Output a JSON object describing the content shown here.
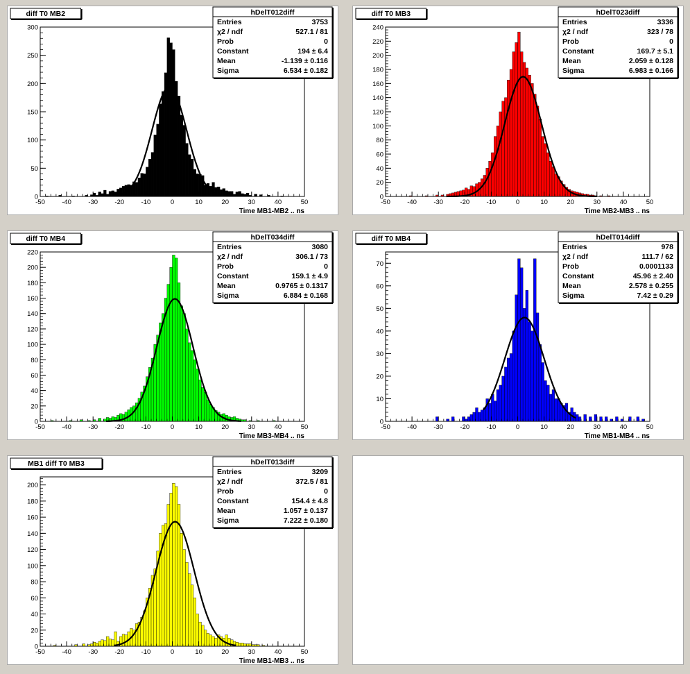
{
  "page": {
    "background": "#d4d0c8",
    "pad_background": "#ffffff"
  },
  "chart_data": [
    {
      "type": "histogram",
      "title": "diff T0 MB2",
      "xlabel": "Time MB1-MB2  ..  ns",
      "ylabel": "",
      "xlim": [
        -50,
        50
      ],
      "ylim": [
        0,
        300
      ],
      "xticks": [
        -50,
        -40,
        -30,
        -20,
        -10,
        0,
        10,
        20,
        30,
        40,
        50
      ],
      "yticks": [
        0,
        50,
        100,
        150,
        200,
        250,
        300
      ],
      "fill_color": "#000000",
      "fit_color": "#000000",
      "bin_width": 1,
      "x": [
        -47.5,
        -42.5,
        -37.5,
        -32.5,
        -30.5,
        -29.5,
        -28.5,
        -27.5,
        -26.5,
        -25.5,
        -24.5,
        -23.5,
        -22.5,
        -21.5,
        -20.5,
        -19.5,
        -18.5,
        -17.5,
        -16.5,
        -15.5,
        -14.5,
        -13.5,
        -12.5,
        -11.5,
        -10.5,
        -9.5,
        -8.5,
        -7.5,
        -6.5,
        -5.5,
        -4.5,
        -3.5,
        -2.5,
        -1.5,
        -0.5,
        0.5,
        1.5,
        2.5,
        3.5,
        4.5,
        5.5,
        6.5,
        7.5,
        8.5,
        9.5,
        10.5,
        11.5,
        12.5,
        13.5,
        14.5,
        15.5,
        16.5,
        17.5,
        18.5,
        19.5,
        20.5,
        21.5,
        22.5,
        23.5,
        24.5,
        25.5,
        26.5,
        27.5,
        28.5,
        29.5,
        31.5,
        33.5,
        36.5,
        41.5
      ],
      "values": [
        1,
        2,
        1,
        2,
        3,
        6,
        2,
        8,
        5,
        11,
        4,
        9,
        10,
        8,
        13,
        15,
        18,
        20,
        21,
        20,
        26,
        25,
        33,
        41,
        40,
        52,
        66,
        78,
        109,
        128,
        164,
        186,
        219,
        281,
        272,
        260,
        204,
        178,
        144,
        126,
        94,
        74,
        66,
        48,
        40,
        39,
        37,
        20,
        23,
        18,
        25,
        16,
        17,
        12,
        14,
        10,
        9,
        9,
        4,
        8,
        9,
        5,
        4,
        6,
        2,
        4,
        3,
        2,
        1
      ],
      "fit": {
        "constant": 194,
        "mean": -1.139,
        "sigma": 6.534,
        "x_range": [
          -20,
          16
        ]
      },
      "stats": {
        "name": "hDelT012diff",
        "rows": [
          {
            "label": "Entries",
            "value": "3753"
          },
          {
            "label": "χ2 / ndf",
            "value": "527.1 / 81"
          },
          {
            "label": "Prob",
            "value": "0"
          },
          {
            "label": "Constant",
            "value": "194 ± 6.4"
          },
          {
            "label": "Mean",
            "value": "-1.139 ± 0.116"
          },
          {
            "label": "Sigma",
            "value": "6.534 ± 0.182"
          }
        ]
      }
    },
    {
      "type": "histogram",
      "title": "diff T0 MB3",
      "xlabel": "Time MB2-MB3  ..  ns",
      "ylabel": "",
      "xlim": [
        -50,
        50
      ],
      "ylim": [
        0,
        240
      ],
      "xticks": [
        -50,
        -40,
        -30,
        -20,
        -10,
        0,
        10,
        20,
        30,
        40,
        50
      ],
      "yticks": [
        0,
        20,
        40,
        60,
        80,
        100,
        120,
        140,
        160,
        180,
        200,
        220,
        240
      ],
      "fill_color": "#ff0000",
      "fit_color": "#000000",
      "bin_width": 1,
      "x": [
        -40.5,
        -34.5,
        -30.5,
        -28.5,
        -26.5,
        -25.5,
        -24.5,
        -23.5,
        -22.5,
        -21.5,
        -20.5,
        -19.5,
        -18.5,
        -17.5,
        -16.5,
        -15.5,
        -14.5,
        -13.5,
        -12.5,
        -11.5,
        -10.5,
        -9.5,
        -8.5,
        -7.5,
        -6.5,
        -5.5,
        -4.5,
        -3.5,
        -2.5,
        -1.5,
        -0.5,
        0.5,
        1.5,
        2.5,
        3.5,
        4.5,
        5.5,
        6.5,
        7.5,
        8.5,
        9.5,
        10.5,
        11.5,
        12.5,
        13.5,
        14.5,
        15.5,
        16.5,
        17.5,
        18.5,
        19.5,
        20.5,
        21.5,
        22.5,
        23.5,
        24.5,
        25.5,
        26.5,
        27.5,
        28.5,
        29.5,
        31.5,
        34.5
      ],
      "values": [
        1,
        1,
        2,
        2,
        3,
        4,
        5,
        6,
        7,
        8,
        9,
        12,
        10,
        15,
        14,
        18,
        20,
        25,
        30,
        40,
        50,
        62,
        85,
        100,
        120,
        135,
        140,
        165,
        180,
        205,
        218,
        233,
        205,
        190,
        182,
        172,
        160,
        145,
        128,
        110,
        85,
        75,
        62,
        50,
        42,
        32,
        28,
        22,
        17,
        13,
        10,
        8,
        7,
        6,
        5,
        4,
        3,
        3,
        2,
        2,
        1,
        1,
        1
      ],
      "fit": {
        "constant": 169.7,
        "mean": 2.059,
        "sigma": 6.983,
        "x_range": [
          -27,
          30
        ]
      },
      "stats": {
        "name": "hDelT023diff",
        "rows": [
          {
            "label": "Entries",
            "value": "3336"
          },
          {
            "label": "χ2 / ndf",
            "value": "323 / 78"
          },
          {
            "label": "Prob",
            "value": "0"
          },
          {
            "label": "Constant",
            "value": "169.7 ± 5.1"
          },
          {
            "label": "Mean",
            "value": "2.059 ± 0.128"
          },
          {
            "label": "Sigma",
            "value": "6.983 ± 0.166"
          }
        ]
      }
    },
    {
      "type": "histogram",
      "title": "diff T0 MB4",
      "xlabel": "Time MB3-MB4  ..  ns",
      "ylabel": "",
      "xlim": [
        -50,
        50
      ],
      "ylim": [
        0,
        220
      ],
      "xticks": [
        -50,
        -40,
        -30,
        -20,
        -10,
        0,
        10,
        20,
        30,
        40,
        50
      ],
      "yticks": [
        0,
        20,
        40,
        60,
        80,
        100,
        120,
        140,
        160,
        180,
        200,
        220
      ],
      "fill_color": "#00ff00",
      "fit_color": "#000000",
      "bin_width": 1,
      "x": [
        -45.5,
        -38.5,
        -34.5,
        -31.5,
        -29.5,
        -27.5,
        -25.5,
        -24.5,
        -23.5,
        -22.5,
        -21.5,
        -20.5,
        -19.5,
        -18.5,
        -17.5,
        -16.5,
        -15.5,
        -14.5,
        -13.5,
        -12.5,
        -11.5,
        -10.5,
        -9.5,
        -8.5,
        -7.5,
        -6.5,
        -5.5,
        -4.5,
        -3.5,
        -2.5,
        -1.5,
        -0.5,
        0.5,
        1.5,
        2.5,
        3.5,
        4.5,
        5.5,
        6.5,
        7.5,
        8.5,
        9.5,
        10.5,
        11.5,
        12.5,
        13.5,
        14.5,
        15.5,
        16.5,
        17.5,
        18.5,
        19.5,
        20.5,
        21.5,
        22.5,
        23.5,
        24.5,
        25.5,
        26.5,
        27.5,
        29.5,
        32.5,
        38.5
      ],
      "values": [
        1,
        1,
        2,
        1,
        2,
        4,
        3,
        5,
        4,
        6,
        5,
        8,
        10,
        9,
        12,
        15,
        18,
        20,
        24,
        30,
        38,
        46,
        58,
        70,
        82,
        100,
        112,
        128,
        140,
        160,
        178,
        200,
        216,
        212,
        180,
        150,
        140,
        120,
        102,
        92,
        80,
        68,
        54,
        44,
        38,
        28,
        22,
        18,
        14,
        12,
        9,
        10,
        8,
        6,
        5,
        6,
        4,
        3,
        2,
        2,
        1,
        1,
        1
      ],
      "fit": {
        "constant": 159.1,
        "mean": 0.9765,
        "sigma": 6.884,
        "x_range": [
          -25,
          26
        ]
      },
      "stats": {
        "name": "hDelT034diff",
        "rows": [
          {
            "label": "Entries",
            "value": "3080"
          },
          {
            "label": "χ2 / ndf",
            "value": "306.1 / 73"
          },
          {
            "label": "Prob",
            "value": "0"
          },
          {
            "label": "Constant",
            "value": "159.1 ± 4.9"
          },
          {
            "label": "Mean",
            "value": "0.9765 ± 0.1317"
          },
          {
            "label": "Sigma",
            "value": "6.884 ± 0.168"
          }
        ]
      }
    },
    {
      "type": "histogram",
      "title": "diff T0 MB4",
      "xlabel": "Time MB1-MB4  ..  ns",
      "ylabel": "",
      "xlim": [
        -50,
        50
      ],
      "ylim": [
        0,
        75
      ],
      "xticks": [
        -50,
        -40,
        -30,
        -20,
        -10,
        0,
        10,
        20,
        30,
        40,
        50
      ],
      "yticks": [
        0,
        10,
        20,
        30,
        40,
        50,
        60,
        70
      ],
      "fill_color": "#0000ff",
      "fit_color": "#000000",
      "bin_width": 1,
      "x": [
        -30.5,
        -26.5,
        -24.5,
        -20.5,
        -19.5,
        -18.5,
        -17.5,
        -16.5,
        -15.5,
        -14.5,
        -13.5,
        -12.5,
        -11.5,
        -10.5,
        -9.5,
        -8.5,
        -7.5,
        -6.5,
        -5.5,
        -4.5,
        -3.5,
        -2.5,
        -1.5,
        -0.5,
        0.5,
        1.5,
        2.5,
        3.5,
        4.5,
        5.5,
        6.5,
        7.5,
        8.5,
        9.5,
        10.5,
        11.5,
        12.5,
        13.5,
        14.5,
        15.5,
        16.5,
        17.5,
        18.5,
        19.5,
        20.5,
        21.5,
        22.5,
        23.5,
        25.5,
        27.5,
        29.5,
        31.5,
        33.5,
        35.5,
        37.5,
        39.5,
        42.5,
        45.5,
        47.5
      ],
      "values": [
        2,
        1,
        2,
        2,
        1,
        2,
        3,
        4,
        6,
        4,
        5,
        6,
        10,
        8,
        12,
        9,
        14,
        16,
        20,
        24,
        28,
        30,
        40,
        56,
        72,
        68,
        50,
        58,
        44,
        40,
        72,
        48,
        34,
        26,
        18,
        16,
        12,
        14,
        10,
        10,
        8,
        7,
        8,
        4,
        6,
        4,
        3,
        2,
        3,
        2,
        3,
        2,
        2,
        1,
        2,
        1,
        2,
        2,
        1
      ],
      "fit": {
        "constant": 45.96,
        "mean": 2.578,
        "sigma": 7.42,
        "x_range": [
          -13,
          22
        ]
      },
      "stats": {
        "name": "hDelT014diff",
        "rows": [
          {
            "label": "Entries",
            "value": "978"
          },
          {
            "label": "χ2 / ndf",
            "value": "111.7 / 62"
          },
          {
            "label": "Prob",
            "value": "0.0001133"
          },
          {
            "label": "Constant",
            "value": "45.96 ± 2.40"
          },
          {
            "label": "Mean",
            "value": "2.578 ± 0.255"
          },
          {
            "label": "Sigma",
            "value": "7.42 ± 0.29"
          }
        ]
      }
    },
    {
      "type": "histogram",
      "title": "MB1 diff T0 MB3",
      "xlabel": "Time MB1-MB3  ..  ns",
      "ylabel": "",
      "xlim": [
        -50,
        50
      ],
      "ylim": [
        0,
        210
      ],
      "xticks": [
        -50,
        -40,
        -30,
        -20,
        -10,
        0,
        10,
        20,
        30,
        40,
        50
      ],
      "yticks": [
        0,
        20,
        40,
        60,
        80,
        100,
        120,
        140,
        160,
        180,
        200
      ],
      "fill_color": "#ffff00",
      "fit_color": "#000000",
      "bin_width": 1,
      "x": [
        -44.5,
        -36.5,
        -33.5,
        -31.5,
        -30.5,
        -29.5,
        -28.5,
        -27.5,
        -26.5,
        -25.5,
        -24.5,
        -23.5,
        -22.5,
        -21.5,
        -20.5,
        -19.5,
        -18.5,
        -17.5,
        -16.5,
        -15.5,
        -14.5,
        -13.5,
        -12.5,
        -11.5,
        -10.5,
        -9.5,
        -8.5,
        -7.5,
        -6.5,
        -5.5,
        -4.5,
        -3.5,
        -2.5,
        -1.5,
        -0.5,
        0.5,
        1.5,
        2.5,
        3.5,
        4.5,
        5.5,
        6.5,
        7.5,
        8.5,
        9.5,
        10.5,
        11.5,
        12.5,
        13.5,
        14.5,
        15.5,
        16.5,
        17.5,
        18.5,
        19.5,
        20.5,
        21.5,
        22.5,
        23.5,
        24.5,
        25.5,
        26.5,
        27.5,
        28.5,
        29.5,
        30.5,
        31.5,
        32.5,
        34.5
      ],
      "values": [
        1,
        2,
        3,
        2,
        3,
        5,
        4,
        6,
        8,
        7,
        12,
        9,
        8,
        18,
        6,
        12,
        15,
        14,
        18,
        22,
        20,
        28,
        30,
        36,
        44,
        60,
        72,
        88,
        96,
        118,
        140,
        150,
        152,
        176,
        190,
        202,
        198,
        176,
        140,
        120,
        104,
        90,
        76,
        60,
        40,
        30,
        26,
        20,
        16,
        14,
        12,
        10,
        14,
        12,
        10,
        14,
        10,
        8,
        6,
        5,
        4,
        4,
        3,
        3,
        3,
        2,
        2,
        2,
        1
      ],
      "fit": {
        "constant": 154.4,
        "mean": 1.057,
        "sigma": 7.222,
        "x_range": [
          -22,
          24
        ]
      },
      "stats": {
        "name": "hDelT013diff",
        "rows": [
          {
            "label": "Entries",
            "value": "3209"
          },
          {
            "label": "χ2 / ndf",
            "value": "372.5 / 81"
          },
          {
            "label": "Prob",
            "value": "0"
          },
          {
            "label": "Constant",
            "value": "154.4 ± 4.8"
          },
          {
            "label": "Mean",
            "value": "1.057 ± 0.137"
          },
          {
            "label": "Sigma",
            "value": "7.222 ± 0.180"
          }
        ]
      }
    }
  ]
}
